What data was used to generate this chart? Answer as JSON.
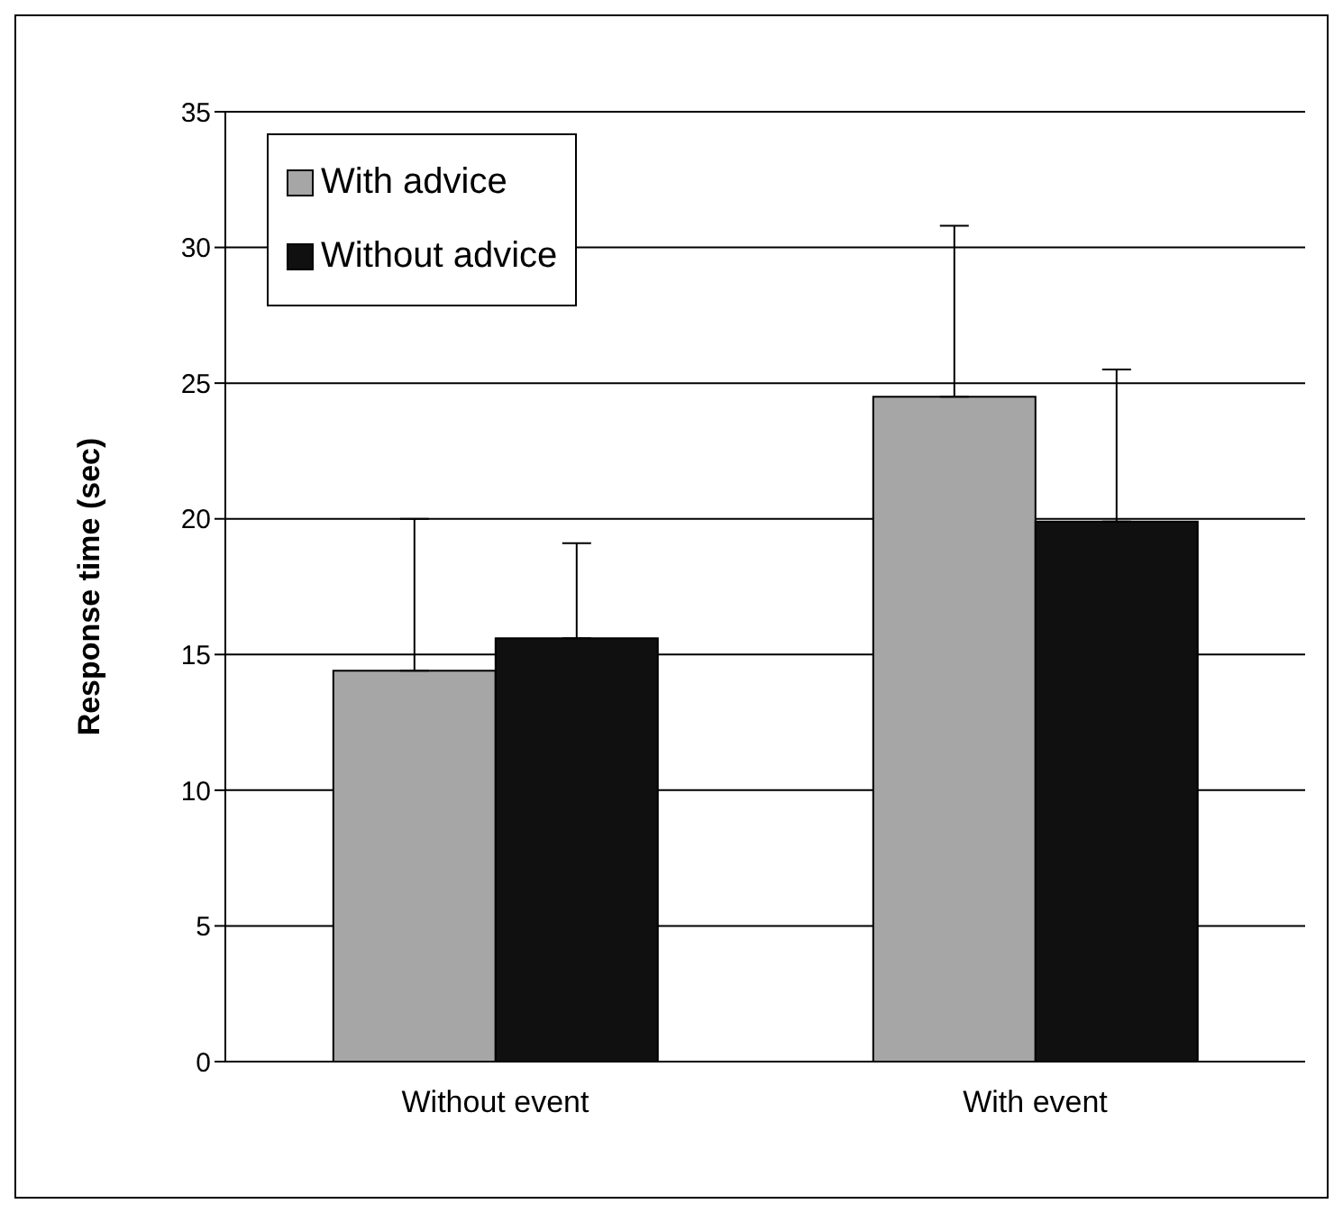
{
  "chart_data": {
    "type": "bar",
    "ylabel": "Response time (sec)",
    "categories": [
      "Without event",
      "With event"
    ],
    "series": [
      {
        "name": "With advice",
        "color": "#a6a6a6",
        "values": [
          14.4,
          24.5
        ],
        "errors": [
          [
            14.4,
            20.0
          ],
          [
            24.5,
            30.8
          ]
        ]
      },
      {
        "name": "Without advice",
        "color": "#101010",
        "values": [
          15.6,
          19.9
        ],
        "errors": [
          [
            15.6,
            19.1
          ],
          [
            19.9,
            25.5
          ]
        ]
      }
    ],
    "ylim": [
      0,
      35
    ],
    "yticks": [
      0,
      5,
      10,
      15,
      20,
      25,
      30,
      35
    ],
    "grid": "y",
    "legend": "top left"
  }
}
